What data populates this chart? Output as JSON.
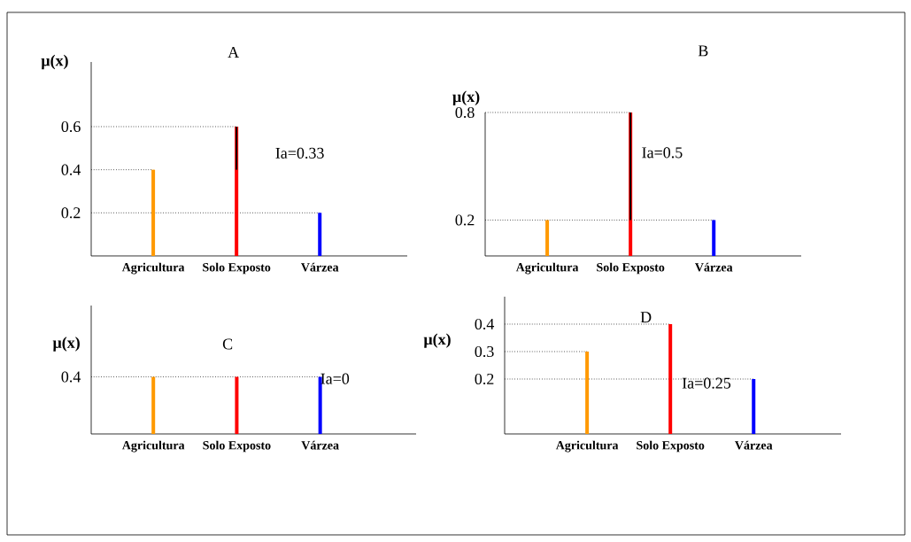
{
  "chart_data": [
    {
      "type": "bar",
      "title": "A",
      "ylabel": "μ(x)",
      "categories": [
        "Agricultura",
        "Solo Exposto",
        "Várzea"
      ],
      "values": [
        0.4,
        0.6,
        0.2
      ],
      "colors": [
        "#ff9900",
        "#ff0000",
        "#0000ff"
      ],
      "errors": [
        null,
        [
          0.4,
          0.6
        ],
        null
      ],
      "ylim": [
        0,
        0.9
      ],
      "yticks": [
        0.2,
        0.4,
        0.6
      ],
      "ref_lines": [
        {
          "axis": "y",
          "value": 0.6,
          "line_style": "dotted"
        },
        {
          "axis": "y",
          "value": 0.4,
          "line_style": "dotted"
        },
        {
          "axis": "y",
          "value": 0.2,
          "line_style": "dotted"
        }
      ],
      "annotations": [
        "Ia=0.33"
      ]
    },
    {
      "type": "bar",
      "title": "B",
      "ylabel": "μ(x)",
      "categories": [
        "Agricultura",
        "Solo Exposto",
        "Várzea"
      ],
      "values": [
        0.2,
        0.8,
        0.2
      ],
      "colors": [
        "#ff9900",
        "#ff0000",
        "#0000ff"
      ],
      "errors": [
        null,
        [
          0.2,
          0.8
        ],
        null
      ],
      "ylim": [
        0,
        0.8
      ],
      "yticks": [
        0.2,
        0.8
      ],
      "ref_lines": [
        {
          "axis": "y",
          "value": 0.8,
          "line_style": "dotted"
        },
        {
          "axis": "y",
          "value": 0.2,
          "line_style": "dotted"
        }
      ],
      "annotations": [
        "Ia=0.5"
      ]
    },
    {
      "type": "bar",
      "title": "C",
      "ylabel": "μ(x)",
      "categories": [
        "Agricultura",
        "Solo Exposto",
        "Várzea"
      ],
      "values": [
        0.4,
        0.4,
        0.4
      ],
      "colors": [
        "#ff9900",
        "#ff0000",
        "#0000ff"
      ],
      "ylim": [
        0,
        0.9
      ],
      "yticks": [
        0.4
      ],
      "ref_lines": [
        {
          "axis": "y",
          "value": 0.4,
          "line_style": "dotted"
        }
      ],
      "annotations": [
        "Ia=0"
      ]
    },
    {
      "type": "bar",
      "title": "D",
      "ylabel": "μ(x)",
      "categories": [
        "Agricultura",
        "Solo Exposto",
        "Várzea"
      ],
      "values": [
        0.3,
        0.4,
        0.2
      ],
      "colors": [
        "#ff9900",
        "#ff0000",
        "#0000ff"
      ],
      "ylim": [
        0,
        0.5
      ],
      "yticks": [
        0.2,
        0.3,
        0.4
      ],
      "ref_lines": [
        {
          "axis": "y",
          "value": 0.4,
          "line_style": "dotted"
        },
        {
          "axis": "y",
          "value": 0.3,
          "line_style": "dotted"
        },
        {
          "axis": "y",
          "value": 0.2,
          "line_style": "dotted"
        }
      ],
      "annotations": [
        "Ia=0.25"
      ]
    }
  ]
}
